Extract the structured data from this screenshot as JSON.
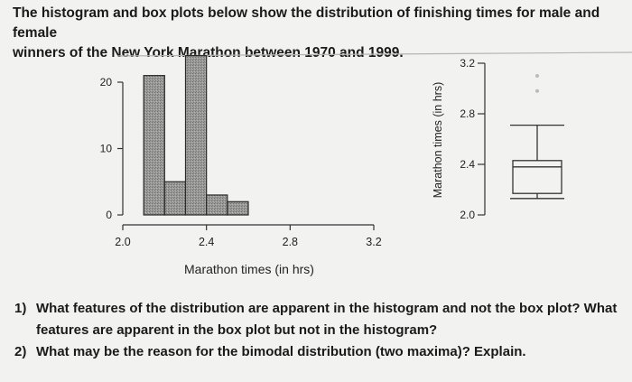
{
  "header": {
    "line1": "The histogram and box plots below show the distribution of finishing times for male and female",
    "line2": "winners of the New York Marathon between 1970 and 1999."
  },
  "chart_data": [
    {
      "type": "bar",
      "title": "",
      "xlabel": "Marathon times (in hrs)",
      "ylabel": "",
      "bins": [
        {
          "start": 2.1,
          "end": 2.2,
          "count": 21
        },
        {
          "start": 2.2,
          "end": 2.3,
          "count": 5
        },
        {
          "start": 2.3,
          "end": 2.4,
          "count": 24
        },
        {
          "start": 2.4,
          "end": 2.5,
          "count": 3
        },
        {
          "start": 2.5,
          "end": 2.6,
          "count": 2
        }
      ],
      "x_ticks": [
        "2.0",
        "2.4",
        "2.8",
        "3.2"
      ],
      "y_ticks": [
        "0",
        "10",
        "20"
      ],
      "xlim": [
        2.0,
        3.2
      ],
      "ylim": [
        0,
        24
      ]
    },
    {
      "type": "box",
      "ylabel": "Marathon times (in hrs)",
      "y_ticks": [
        "2.0",
        "2.4",
        "2.8",
        "3.2"
      ],
      "ylim": [
        2.0,
        3.2
      ],
      "whisker_low": 2.13,
      "q1": 2.17,
      "median": 2.38,
      "q3": 2.43,
      "whisker_high": 2.71,
      "outliers": [
        2.98,
        3.1
      ]
    }
  ],
  "questions": [
    {
      "num": "1)",
      "text": "What features of the distribution are apparent in the histogram and not the box plot? What features are apparent in the box plot but not in the histogram?"
    },
    {
      "num": "2)",
      "text": "What may be the reason for the bimodal distribution (two maxima)? Explain."
    }
  ]
}
